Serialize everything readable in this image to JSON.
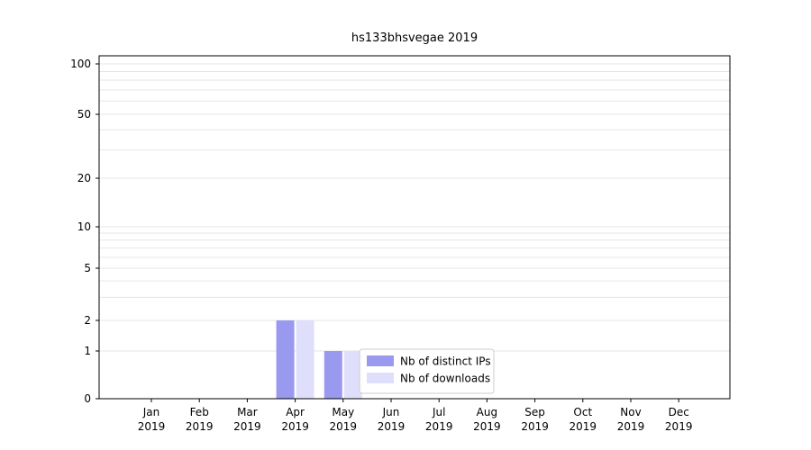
{
  "chart_data": {
    "type": "bar",
    "title": "hs133bhsvegae 2019",
    "categories": [
      "Jan 2019",
      "Feb 2019",
      "Mar 2019",
      "Apr 2019",
      "May 2019",
      "Jun 2019",
      "Jul 2019",
      "Aug 2019",
      "Sep 2019",
      "Oct 2019",
      "Nov 2019",
      "Dec 2019"
    ],
    "series": [
      {
        "name": "Nb of distinct IPs",
        "color": "#9999f0",
        "values": [
          0,
          0,
          0,
          2,
          1,
          0,
          0,
          0,
          0,
          0,
          0,
          0
        ]
      },
      {
        "name": "Nb of downloads",
        "color": "#dfdffb",
        "values": [
          0,
          0,
          0,
          2,
          1,
          0,
          0,
          0,
          0,
          0,
          0,
          0
        ]
      }
    ],
    "yscale": "symlog",
    "ylim": [
      0,
      110
    ],
    "yticks": [
      0,
      1,
      2,
      5,
      10,
      20,
      50,
      100
    ],
    "gridlines": [
      1,
      2,
      3,
      4,
      5,
      6,
      7,
      8,
      9,
      10,
      20,
      30,
      40,
      50,
      60,
      70,
      80,
      90,
      100
    ],
    "grid_color": "#e6e6e6",
    "axis_color": "#000000",
    "legend": {
      "position": "lower-right-inside",
      "entries": [
        "Nb of distinct IPs",
        "Nb of downloads"
      ]
    }
  }
}
